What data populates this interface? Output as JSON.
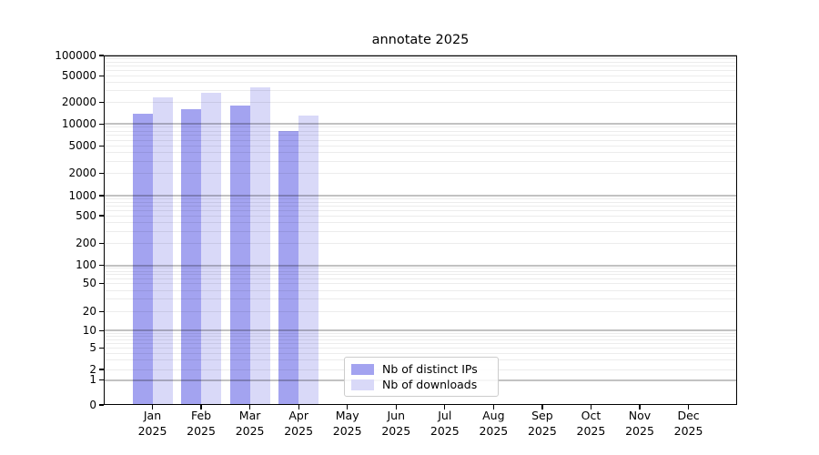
{
  "chart_data": {
    "type": "bar",
    "title": "annotate 2025",
    "x_categories": [
      "Jan",
      "Feb",
      "Mar",
      "Apr",
      "May",
      "Jun",
      "Jul",
      "Aug",
      "Sep",
      "Oct",
      "Nov",
      "Dec"
    ],
    "x_category_year": "2025",
    "series": [
      {
        "name": "Nb of distinct IPs",
        "color": "#a3a3f0",
        "values": [
          14000,
          16000,
          18000,
          8000,
          null,
          null,
          null,
          null,
          null,
          null,
          null,
          null
        ]
      },
      {
        "name": "Nb of downloads",
        "color": "#d9d9f8",
        "values": [
          24000,
          28000,
          34000,
          13000,
          null,
          null,
          null,
          null,
          null,
          null,
          null,
          null
        ]
      }
    ],
    "y_scale": "log-with-zero",
    "y_ticks": [
      0,
      1,
      2,
      5,
      10,
      20,
      50,
      100,
      200,
      500,
      1000,
      2000,
      5000,
      10000,
      20000,
      50000,
      100000
    ],
    "ylim": [
      0,
      100000
    ],
    "grid": "horizontal, minor and major, drawn above bars",
    "legend_position": "lower center"
  },
  "colors": {
    "background": "#ffffff",
    "axis": "#000000",
    "grid_minor": "rgba(0,0,0,0.075)",
    "grid_major": "rgba(0,0,0,0.24)"
  }
}
